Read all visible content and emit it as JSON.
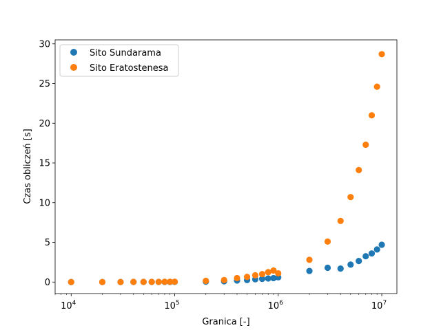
{
  "chart_data": {
    "type": "scatter",
    "xlabel": "Granica [-]",
    "ylabel": "Czas obliczeń [s]",
    "xscale": "log",
    "xlim": [
      7000,
      14000000
    ],
    "ylim": [
      -1.45,
      30.5
    ],
    "yticks": [
      0,
      5,
      10,
      15,
      20,
      25,
      30
    ],
    "xticks": [
      {
        "value": 10000,
        "base": "10",
        "exp": "4"
      },
      {
        "value": 100000,
        "base": "10",
        "exp": "5"
      },
      {
        "value": 1000000,
        "base": "10",
        "exp": "6"
      },
      {
        "value": 10000000,
        "base": "10",
        "exp": "7"
      }
    ],
    "grid": false,
    "legend_position": "upper-left",
    "x": [
      10000,
      20000,
      30000,
      40000,
      50000,
      60000,
      70000,
      80000,
      90000,
      100000,
      200000,
      300000,
      400000,
      500000,
      600000,
      700000,
      800000,
      900000,
      1000000,
      2000000,
      3000000,
      4000000,
      5000000,
      6000000,
      7000000,
      8000000,
      9000000,
      10000000
    ],
    "series": [
      {
        "name": "Sito Sundarama",
        "color": "#1f77b4",
        "values": [
          0.0,
          0.0,
          0.0,
          0.01,
          0.01,
          0.01,
          0.01,
          0.01,
          0.01,
          0.02,
          0.05,
          0.1,
          0.2,
          0.25,
          0.35,
          0.4,
          0.45,
          0.5,
          0.6,
          1.4,
          1.8,
          1.7,
          2.2,
          2.65,
          3.25,
          3.6,
          4.1,
          4.7
        ]
      },
      {
        "name": "Sito Eratostenesa",
        "color": "#ff7f0e",
        "values": [
          0.0,
          0.0,
          0.0,
          0.02,
          0.02,
          0.02,
          0.02,
          0.03,
          0.03,
          0.04,
          0.15,
          0.25,
          0.5,
          0.65,
          0.85,
          1.0,
          1.25,
          1.45,
          1.1,
          2.8,
          5.1,
          7.7,
          10.7,
          14.1,
          17.3,
          21.0,
          24.6,
          28.7
        ]
      }
    ]
  }
}
